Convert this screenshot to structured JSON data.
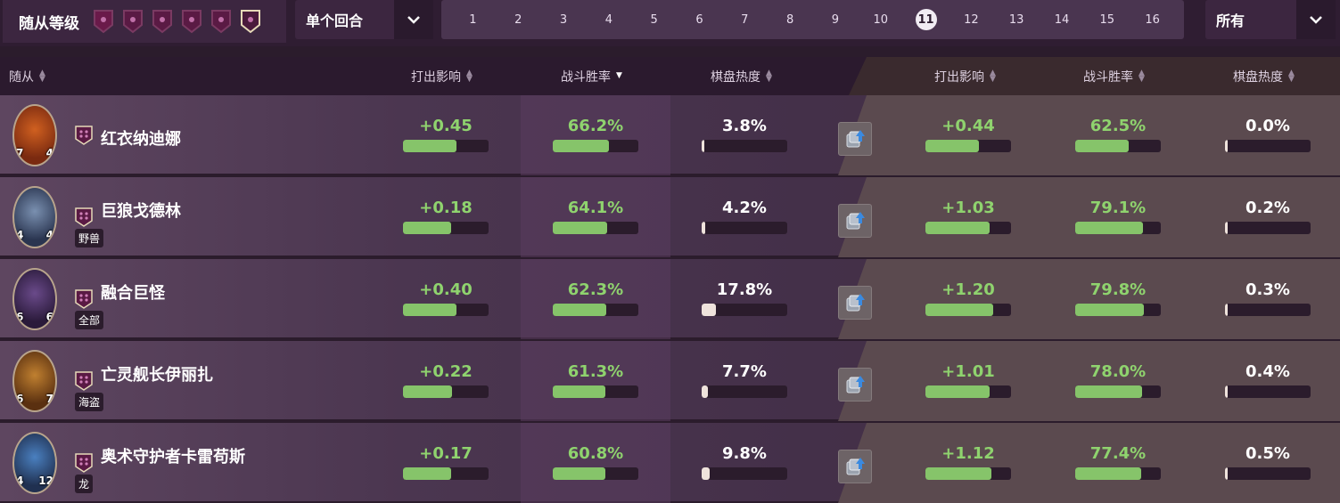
{
  "filters": {
    "tier_label": "随从等级",
    "tier_count": 6,
    "turn_mode": "单个回合",
    "turns": [
      "1",
      "2",
      "3",
      "4",
      "5",
      "6",
      "7",
      "8",
      "9",
      "10",
      "11",
      "12",
      "13",
      "14",
      "15",
      "16"
    ],
    "active_turn": "11",
    "tribe_filter": "所有"
  },
  "header": {
    "minion": "随从",
    "left": {
      "impact": "打出影响",
      "winrate": "战斗胜率",
      "heat": "棋盘热度"
    },
    "right": {
      "impact": "打出影响",
      "winrate": "战斗胜率",
      "heat": "棋盘热度"
    }
  },
  "colors": {
    "accent_green": "#8fd36e",
    "bar_green": "#86c46a",
    "bg": "#2b1c2c"
  },
  "rows": [
    {
      "name": "红衣纳迪娜",
      "attack": "7",
      "health": "4",
      "tribe": "",
      "impact": "+0.45",
      "impact_frac": 0.63,
      "winrate": "66.2%",
      "winrate_frac": 0.66,
      "heat": "3.8%",
      "heat_frac": 0.03,
      "g_impact": "+0.44",
      "g_impact_frac": 0.62,
      "g_winrate": "62.5%",
      "g_winrate_frac": 0.63,
      "g_heat": "0.0%",
      "g_heat_frac": 0.0
    },
    {
      "name": "巨狼戈德林",
      "attack": "4",
      "health": "4",
      "tribe": "野兽",
      "impact": "+0.18",
      "impact_frac": 0.56,
      "winrate": "64.1%",
      "winrate_frac": 0.64,
      "heat": "4.2%",
      "heat_frac": 0.04,
      "g_impact": "+1.03",
      "g_impact_frac": 0.75,
      "g_winrate": "79.1%",
      "g_winrate_frac": 0.79,
      "g_heat": "0.2%",
      "g_heat_frac": 0.01
    },
    {
      "name": "融合巨怪",
      "attack": "6",
      "health": "6",
      "tribe": "全部",
      "impact": "+0.40",
      "impact_frac": 0.62,
      "winrate": "62.3%",
      "winrate_frac": 0.62,
      "heat": "17.8%",
      "heat_frac": 0.17,
      "g_impact": "+1.20",
      "g_impact_frac": 0.79,
      "g_winrate": "79.8%",
      "g_winrate_frac": 0.8,
      "g_heat": "0.3%",
      "g_heat_frac": 0.01
    },
    {
      "name": "亡灵舰长伊丽扎",
      "attack": "6",
      "health": "7",
      "tribe": "海盗",
      "impact": "+0.22",
      "impact_frac": 0.57,
      "winrate": "61.3%",
      "winrate_frac": 0.61,
      "heat": "7.7%",
      "heat_frac": 0.07,
      "g_impact": "+1.01",
      "g_impact_frac": 0.75,
      "g_winrate": "78.0%",
      "g_winrate_frac": 0.78,
      "g_heat": "0.4%",
      "g_heat_frac": 0.01
    },
    {
      "name": "奥术守护者卡雷苟斯",
      "attack": "4",
      "health": "12",
      "tribe": "龙",
      "impact": "+0.17",
      "impact_frac": 0.56,
      "winrate": "60.8%",
      "winrate_frac": 0.61,
      "heat": "9.8%",
      "heat_frac": 0.09,
      "g_impact": "+1.12",
      "g_impact_frac": 0.77,
      "g_winrate": "77.4%",
      "g_winrate_frac": 0.77,
      "g_heat": "0.5%",
      "g_heat_frac": 0.01
    }
  ]
}
